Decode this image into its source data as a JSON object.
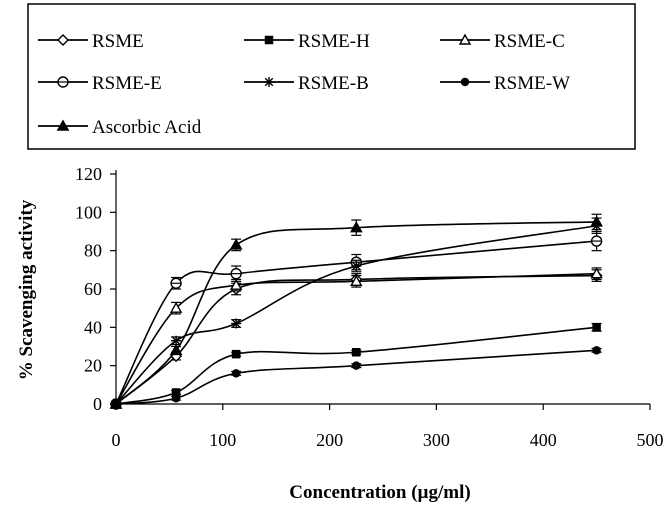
{
  "chart_data": {
    "type": "line",
    "title": "",
    "xlabel": "Concentration (µg/ml)",
    "ylabel": "% Scavenging activity",
    "xlim": [
      0,
      500
    ],
    "ylim": [
      0,
      120
    ],
    "x_ticks": [
      0,
      100,
      200,
      300,
      400,
      500
    ],
    "y_ticks": [
      0,
      20,
      40,
      60,
      80,
      100,
      120
    ],
    "grid": false,
    "legend_position": "top",
    "x": [
      0,
      56.25,
      112.5,
      225,
      450
    ],
    "series": [
      {
        "name": "RSME",
        "marker": "diamond-open",
        "values": [
          0,
          25,
          60,
          65,
          67
        ],
        "error": [
          1,
          2,
          3,
          3,
          3
        ]
      },
      {
        "name": "RSME-H",
        "marker": "square-filled",
        "values": [
          0,
          6,
          26,
          27,
          40
        ],
        "error": [
          1,
          1,
          1,
          1,
          2
        ]
      },
      {
        "name": "RSME-C",
        "marker": "triangle-open",
        "values": [
          0,
          50,
          62,
          64,
          68
        ],
        "error": [
          1,
          3,
          3,
          3,
          3
        ]
      },
      {
        "name": "RSME-E",
        "marker": "circle-open",
        "values": [
          0,
          63,
          68,
          74,
          85
        ],
        "error": [
          1,
          3,
          4,
          4,
          5
        ]
      },
      {
        "name": "RSME-B",
        "marker": "star",
        "values": [
          0,
          33,
          42,
          72,
          93
        ],
        "error": [
          1,
          2,
          2,
          3,
          4
        ]
      },
      {
        "name": "RSME-W",
        "marker": "circle-filled",
        "values": [
          0,
          3,
          16,
          20,
          28
        ],
        "error": [
          1,
          1,
          1,
          1,
          1
        ]
      },
      {
        "name": "Ascorbic Acid",
        "marker": "triangle-filled",
        "values": [
          0,
          28,
          83,
          92,
          95
        ],
        "error": [
          1,
          2,
          3,
          4,
          4
        ]
      }
    ]
  }
}
